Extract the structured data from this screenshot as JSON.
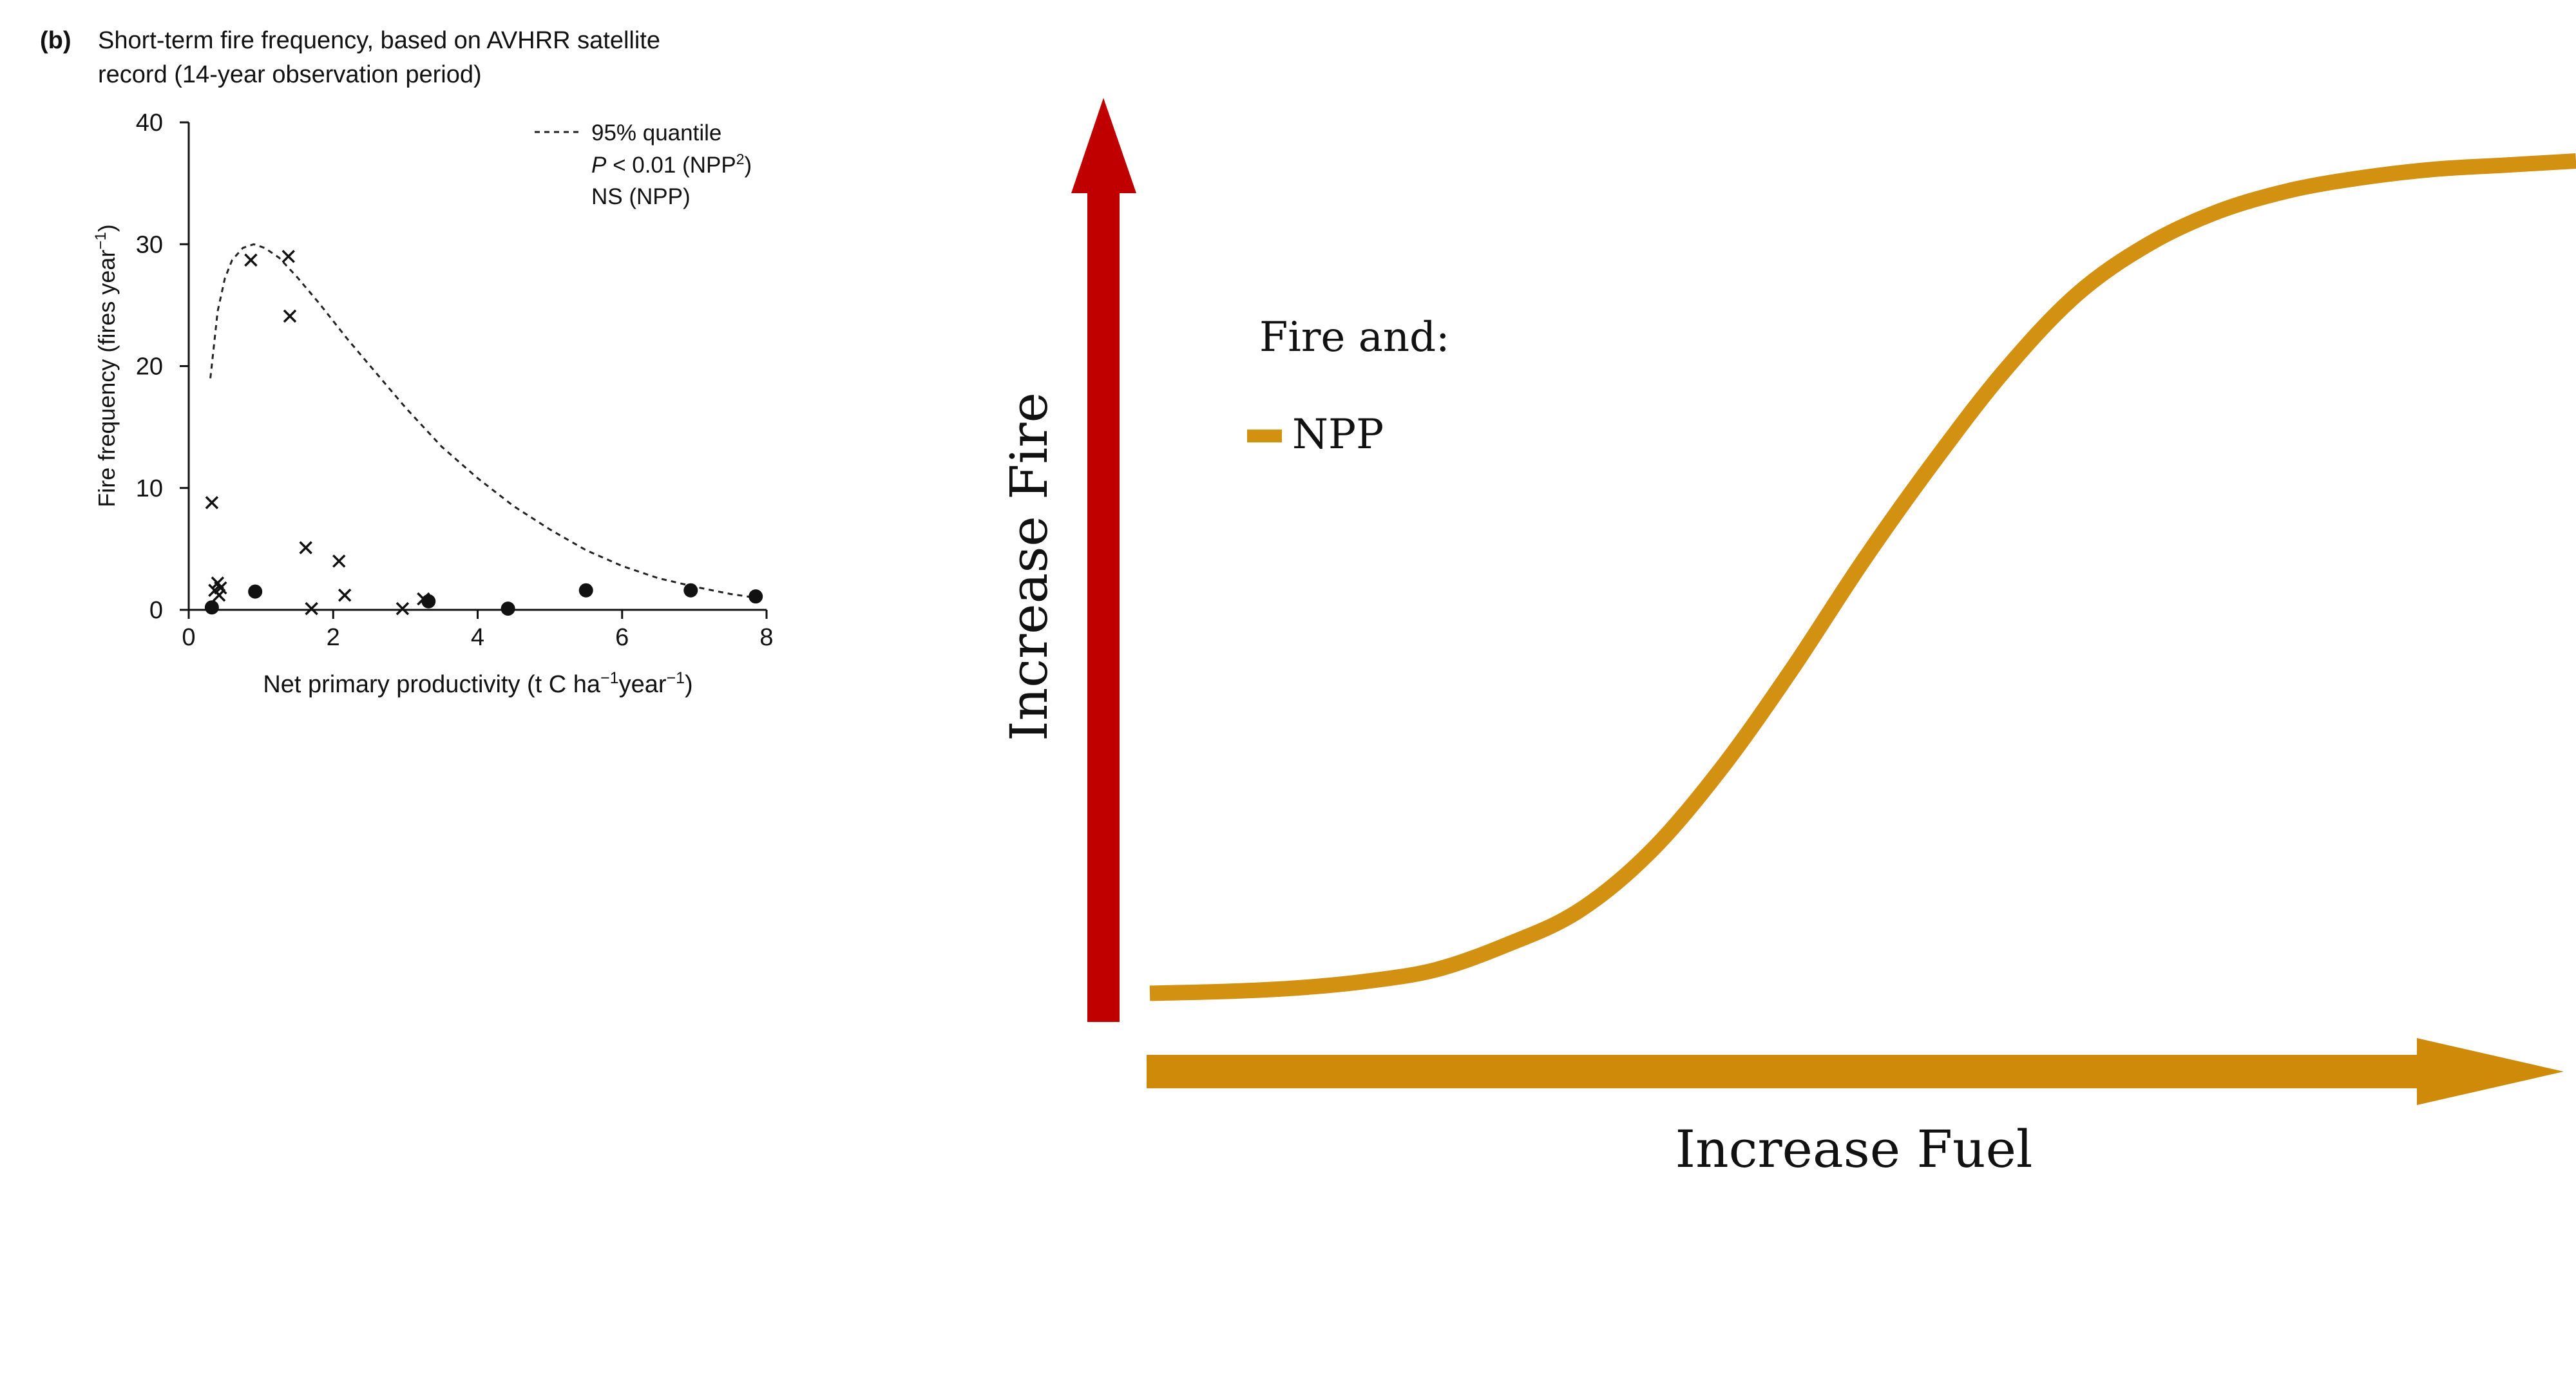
{
  "panel_b": {
    "panel_label": "(b)",
    "title_line1": "Short-term fire frequency, based on AVHRR satellite",
    "title_line2": "record (14-year observation period)",
    "legend": {
      "line_label": "95% quantile",
      "p_symbol": "P",
      "p_text": " < 0.01 (NPP",
      "p_sup": "2",
      "p_close": ")",
      "ns_text": "NS (NPP)"
    }
  },
  "concept": {
    "y_axis_label": "Increase Fire",
    "x_axis_label": "Increase Fuel",
    "legend_title": "Fire and:",
    "legend_item": "NPP",
    "colors": {
      "fire_arrow": "#c00000",
      "fuel": "#d08a0a",
      "curve": "#d39112"
    }
  },
  "chart_data": [
    {
      "type": "scatter",
      "title": "Short-term fire frequency, based on AVHRR satellite record (14-year observation period)",
      "xlabel": "Net primary productivity (t C ha⁻¹year⁻¹)",
      "ylabel": "Fire frequency (fires year⁻¹)",
      "xlim": [
        0,
        8
      ],
      "ylim": [
        0,
        40
      ],
      "xticks": [
        0,
        2,
        4,
        6,
        8
      ],
      "yticks": [
        0,
        10,
        20,
        30,
        40
      ],
      "grid": false,
      "legend_position": "top-right",
      "series": [
        {
          "marker": "x",
          "points": [
            [
              0.32,
              8.8
            ],
            [
              0.4,
              2.2
            ],
            [
              0.36,
              1.6
            ],
            [
              0.42,
              1.2
            ],
            [
              0.44,
              1.8
            ],
            [
              0.86,
              28.7
            ],
            [
              1.38,
              29.0
            ],
            [
              1.4,
              24.1
            ],
            [
              1.62,
              5.1
            ],
            [
              1.7,
              0.1
            ],
            [
              2.08,
              4.0
            ],
            [
              2.16,
              1.2
            ],
            [
              2.96,
              0.1
            ],
            [
              3.25,
              0.9
            ]
          ]
        },
        {
          "marker": "dot",
          "points": [
            [
              0.32,
              0.2
            ],
            [
              0.92,
              1.5
            ],
            [
              3.32,
              0.7
            ],
            [
              4.42,
              0.1
            ],
            [
              5.5,
              1.6
            ],
            [
              6.95,
              1.6
            ],
            [
              7.85,
              1.1
            ]
          ]
        },
        {
          "name": "95% quantile",
          "style": "dashed",
          "x": [
            0.3,
            0.4,
            0.5,
            0.6,
            0.75,
            0.9,
            1.05,
            1.25,
            1.5,
            1.8,
            2.2,
            2.6,
            3.0,
            3.5,
            4.0,
            4.5,
            5.0,
            5.5,
            6.0,
            6.5,
            7.0,
            7.5,
            7.85
          ],
          "y": [
            19,
            24.5,
            27.2,
            28.7,
            29.7,
            30.0,
            29.7,
            28.9,
            27.3,
            25.2,
            22.2,
            19.4,
            16.6,
            13.4,
            10.8,
            8.5,
            6.6,
            4.9,
            3.6,
            2.6,
            1.9,
            1.3,
            1.0
          ]
        }
      ]
    },
    {
      "type": "line",
      "title": "",
      "xlabel": "Increase Fuel",
      "ylabel": "Increase Fire",
      "legend_title": "Fire and:",
      "series": [
        {
          "name": "NPP",
          "color": "#d39112",
          "x": [
            0,
            0.05,
            0.1,
            0.15,
            0.2,
            0.25,
            0.3,
            0.35,
            0.4,
            0.45,
            0.5,
            0.55,
            0.6,
            0.65,
            0.7,
            0.75,
            0.8,
            0.85,
            0.9,
            0.95,
            1.0
          ],
          "y": [
            0.002,
            0.004,
            0.008,
            0.016,
            0.03,
            0.06,
            0.1,
            0.17,
            0.27,
            0.39,
            0.52,
            0.64,
            0.75,
            0.84,
            0.9,
            0.94,
            0.965,
            0.98,
            0.99,
            0.995,
            1.0
          ]
        }
      ]
    }
  ]
}
